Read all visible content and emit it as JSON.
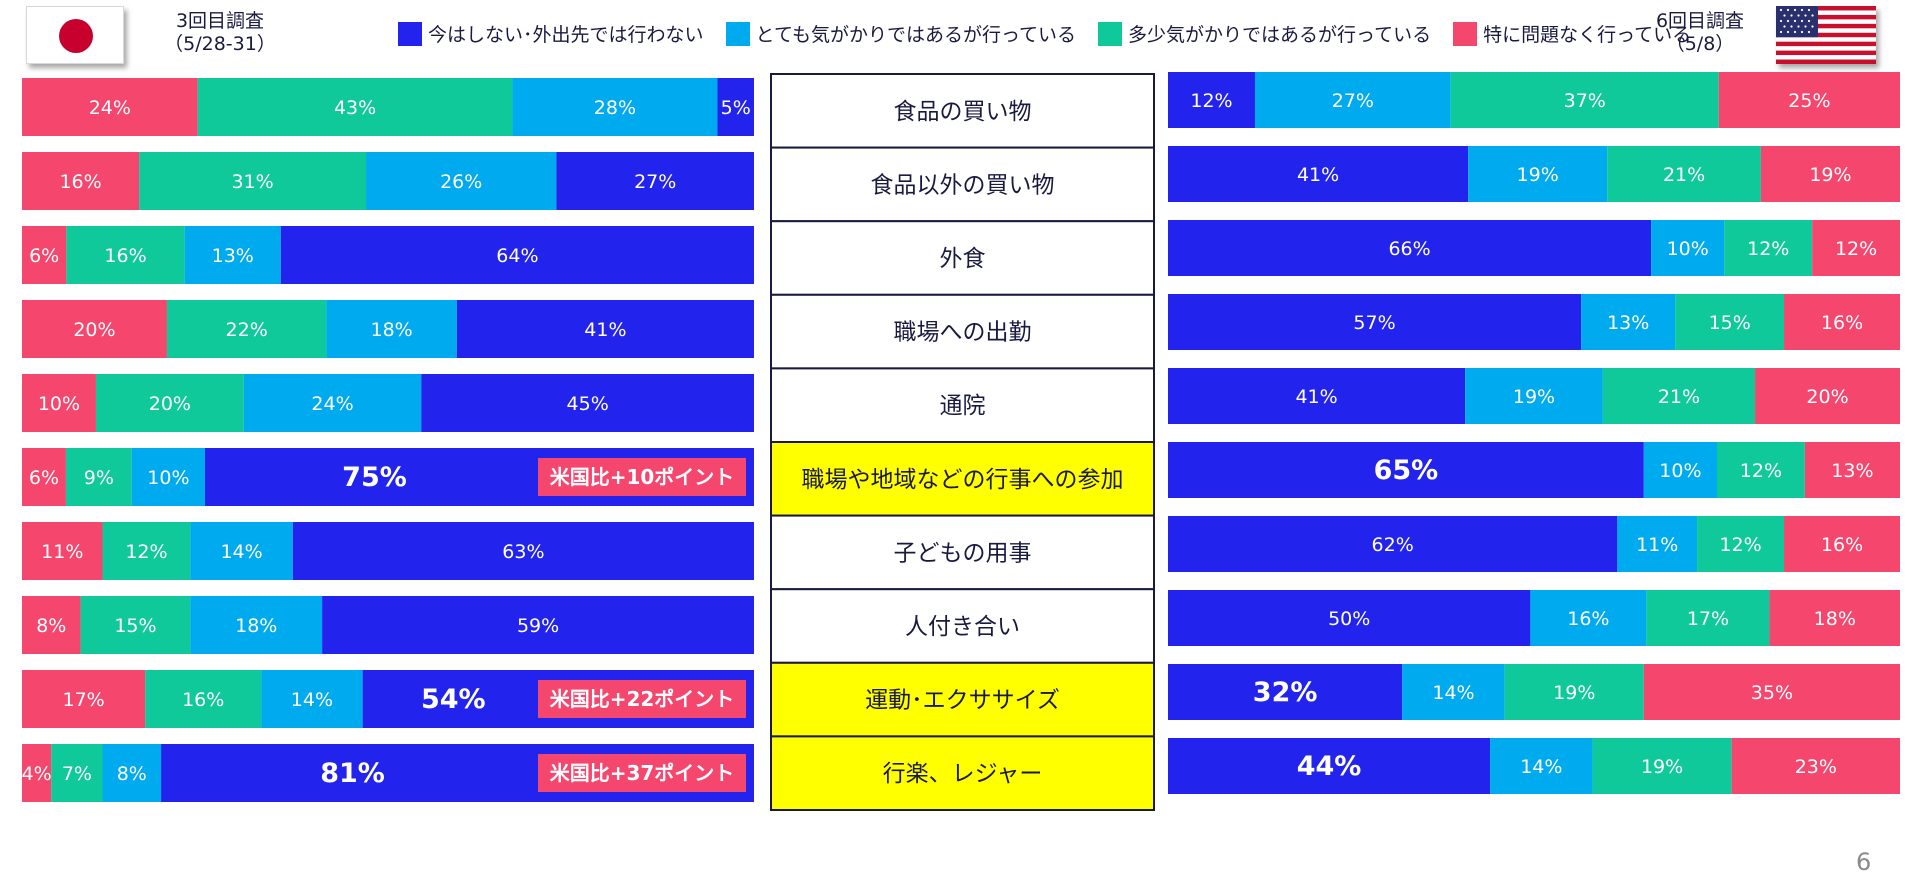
{
  "header": {
    "jp_survey_line1": "3回目調査",
    "jp_survey_line2": "（5/28-31）",
    "us_survey_line1": "6回目調査",
    "us_survey_line2": "（5/8）",
    "jp_flag_icon": "japan-flag-icon",
    "us_flag_icon": "usa-flag-icon"
  },
  "legend": [
    {
      "label": "今はしない･外出先では行わない",
      "color": "#2323ee"
    },
    {
      "label": "とても気がかりではあるが行っている",
      "color": "#00aaee"
    },
    {
      "label": "多少気がかりではあるが行っている",
      "color": "#10c99a"
    },
    {
      "label": "特に問題なく行っている",
      "color": "#f5466e"
    }
  ],
  "page_number": "6",
  "chart_data": {
    "type": "bar",
    "stacked": true,
    "orientation": "horizontal",
    "unit": "%",
    "categories": [
      "食品の買い物",
      "食品以外の買い物",
      "外食",
      "職場への出勤",
      "通院",
      "職場や地域などの行事への参加",
      "子どもの用事",
      "人付き合い",
      "運動･エクササイズ",
      "行楽、レジャー"
    ],
    "highlighted_categories": [
      "職場や地域などの行事への参加",
      "運動･エクササイズ",
      "行楽、レジャー"
    ],
    "series_order_japan": [
      "特に問題なく行っている",
      "多少気がかりではあるが行っている",
      "とても気がかりではあるが行っている",
      "今はしない･外出先では行わない"
    ],
    "series_order_usa": [
      "今はしない･外出先では行わない",
      "とても気がかりではあるが行っている",
      "多少気がかりではあるが行っている",
      "特に問題なく行っている"
    ],
    "japan": [
      {
        "values": [
          24,
          43,
          28,
          5
        ]
      },
      {
        "values": [
          16,
          31,
          26,
          27
        ]
      },
      {
        "values": [
          6,
          16,
          13,
          64
        ]
      },
      {
        "values": [
          20,
          22,
          18,
          41
        ]
      },
      {
        "values": [
          10,
          20,
          24,
          45
        ]
      },
      {
        "values": [
          6,
          9,
          10,
          75
        ],
        "emphasis": true,
        "callout": "米国比+10ポイント"
      },
      {
        "values": [
          11,
          12,
          14,
          63
        ]
      },
      {
        "values": [
          8,
          15,
          18,
          59
        ]
      },
      {
        "values": [
          17,
          16,
          14,
          54
        ],
        "emphasis": true,
        "callout": "米国比+22ポイント"
      },
      {
        "values": [
          4,
          7,
          8,
          81
        ],
        "emphasis": true,
        "callout": "米国比+37ポイント"
      }
    ],
    "usa": [
      {
        "values": [
          12,
          27,
          37,
          25
        ]
      },
      {
        "values": [
          41,
          19,
          21,
          19
        ]
      },
      {
        "values": [
          66,
          10,
          12,
          12
        ]
      },
      {
        "values": [
          57,
          13,
          15,
          16
        ]
      },
      {
        "values": [
          41,
          19,
          21,
          20
        ]
      },
      {
        "values": [
          65,
          10,
          12,
          13
        ],
        "emphasis": true
      },
      {
        "values": [
          62,
          11,
          12,
          16
        ]
      },
      {
        "values": [
          50,
          16,
          17,
          18
        ]
      },
      {
        "values": [
          32,
          14,
          19,
          35
        ],
        "emphasis": true
      },
      {
        "values": [
          44,
          14,
          19,
          23
        ],
        "emphasis": true
      }
    ]
  }
}
